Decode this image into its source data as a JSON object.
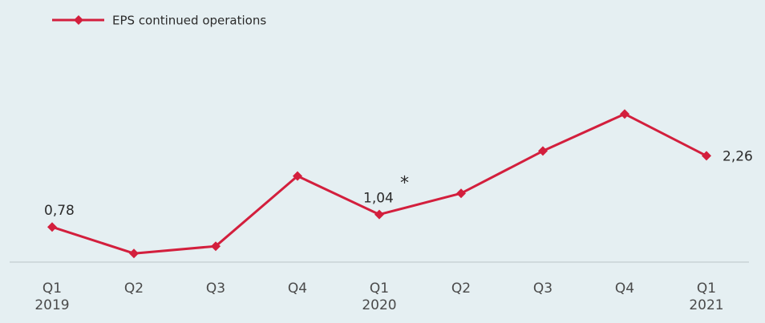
{
  "chart_data": {
    "type": "line",
    "categories": [
      "Q1\n2019",
      "Q2",
      "Q3",
      "Q4",
      "Q1\n2020",
      "Q2",
      "Q3",
      "Q4",
      "Q1\n2021"
    ],
    "series": [
      {
        "name": "EPS continued operations",
        "color": "#d31f3d",
        "values": [
          0.78,
          0.23,
          0.38,
          1.84,
          1.04,
          1.48,
          2.36,
          3.13,
          2.26
        ],
        "value_labels": [
          "0,78",
          null,
          null,
          null,
          "1,04",
          null,
          null,
          null,
          "2,26"
        ]
      }
    ],
    "annotation": "*",
    "ylim": [
      0,
      4
    ],
    "legend": "top-left"
  }
}
